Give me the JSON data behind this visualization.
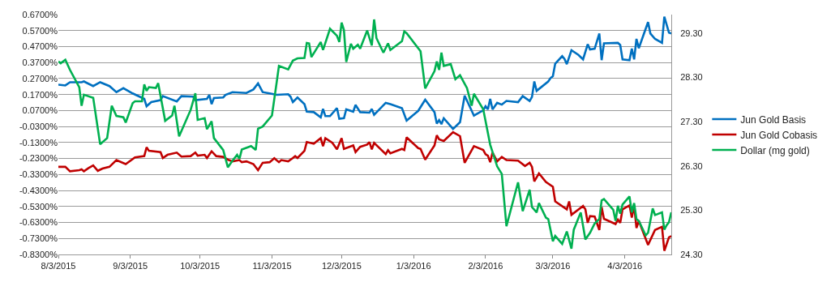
{
  "chart_data": {
    "type": "line",
    "legend": "right",
    "grid": "y",
    "marker": "none",
    "line_style": "solid",
    "xlim": [
      "2015-08-03",
      "2016-04-23"
    ],
    "xticks": [
      {
        "value": "2015-08-03",
        "label": "8/3/2015"
      },
      {
        "value": "2015-09-03",
        "label": "9/3/2015"
      },
      {
        "value": "2015-10-03",
        "label": "10/3/2015"
      },
      {
        "value": "2015-11-03",
        "label": "11/3/2015"
      },
      {
        "value": "2015-12-03",
        "label": "12/3/2015"
      },
      {
        "value": "2016-01-03",
        "label": "1/3/2016"
      },
      {
        "value": "2016-02-03",
        "label": "2/3/2016"
      },
      {
        "value": "2016-03-03",
        "label": "3/3/2016"
      },
      {
        "value": "2016-04-03",
        "label": "4/3/2016"
      }
    ],
    "ylim": [
      -0.83,
      0.67
    ],
    "yticks": [
      {
        "value": 0.67,
        "label": "0.6700%"
      },
      {
        "value": 0.57,
        "label": "0.5700%"
      },
      {
        "value": 0.47,
        "label": "0.4700%"
      },
      {
        "value": 0.37,
        "label": "0.3700%"
      },
      {
        "value": 0.27,
        "label": "0.2700%"
      },
      {
        "value": 0.17,
        "label": "0.1700%"
      },
      {
        "value": 0.07,
        "label": "0.0700%"
      },
      {
        "value": -0.03,
        "label": "-0.0300%"
      },
      {
        "value": -0.13,
        "label": "-0.1300%"
      },
      {
        "value": -0.23,
        "label": "-0.2300%"
      },
      {
        "value": -0.33,
        "label": "-0.3300%"
      },
      {
        "value": -0.43,
        "label": "-0.4300%"
      },
      {
        "value": -0.53,
        "label": "-0.5300%"
      },
      {
        "value": -0.63,
        "label": "-0.6300%"
      },
      {
        "value": -0.73,
        "label": "-0.7300%"
      },
      {
        "value": -0.83,
        "label": "-0.8300%"
      }
    ],
    "y2lim": [
      24.3,
      29.72
    ],
    "y2ticks": [
      {
        "value": 24.3,
        "label": "24.30"
      },
      {
        "value": 25.3,
        "label": "25.30"
      },
      {
        "value": 26.3,
        "label": "26.30"
      },
      {
        "value": 27.3,
        "label": "27.30"
      },
      {
        "value": 28.3,
        "label": "28.30"
      },
      {
        "value": 29.3,
        "label": "29.30"
      }
    ],
    "series": [
      {
        "name": "Jun Gold Basis",
        "color": "#0070c0",
        "x": [
          "2015-08-03",
          "2015-08-06",
          "2015-08-08",
          "2015-08-13",
          "2015-08-14",
          "2015-08-18",
          "2015-08-21",
          "2015-08-25",
          "2015-08-28",
          "2015-08-31",
          "2015-09-04",
          "2015-09-09",
          "2015-09-10",
          "2015-09-12",
          "2015-09-16",
          "2015-09-17",
          "2015-09-23",
          "2015-09-25",
          "2015-09-30",
          "2015-10-01",
          "2015-10-06",
          "2015-10-07",
          "2015-10-08",
          "2015-10-09",
          "2015-10-13",
          "2015-10-14",
          "2015-10-17",
          "2015-10-23",
          "2015-10-26",
          "2015-10-28",
          "2015-10-30",
          "2015-11-02",
          "2015-11-05",
          "2015-11-10",
          "2015-11-11",
          "2015-11-12",
          "2015-11-14",
          "2015-11-17",
          "2015-11-18",
          "2015-11-21",
          "2015-11-24",
          "2015-11-25",
          "2015-11-26",
          "2015-11-28",
          "2015-12-01",
          "2015-12-02",
          "2015-12-04",
          "2015-12-05",
          "2015-12-08",
          "2015-12-09",
          "2015-12-11",
          "2015-12-15",
          "2015-12-16",
          "2015-12-17",
          "2015-12-22",
          "2015-12-24",
          "2015-12-29",
          "2015-12-31",
          "2016-01-05",
          "2016-01-08",
          "2016-01-12",
          "2016-01-13",
          "2016-01-14",
          "2016-01-15",
          "2016-01-16",
          "2016-01-20",
          "2016-01-23",
          "2016-01-25",
          "2016-01-29",
          "2016-02-02",
          "2016-02-03",
          "2016-02-04",
          "2016-02-05",
          "2016-02-06",
          "2016-02-08",
          "2016-02-10",
          "2016-02-12",
          "2016-02-17",
          "2016-02-19",
          "2016-02-22",
          "2016-02-23",
          "2016-02-24",
          "2016-02-25",
          "2016-03-01",
          "2016-03-02",
          "2016-03-03",
          "2016-03-04",
          "2016-03-07",
          "2016-03-08",
          "2016-03-09",
          "2016-03-11",
          "2016-03-14",
          "2016-03-16",
          "2016-03-18",
          "2016-03-19",
          "2016-03-21",
          "2016-03-23",
          "2016-03-24",
          "2016-03-25",
          "2016-03-31",
          "2016-04-01",
          "2016-04-02",
          "2016-04-05",
          "2016-04-06",
          "2016-04-07",
          "2016-04-08",
          "2016-04-09",
          "2016-04-13",
          "2016-04-14",
          "2016-04-16",
          "2016-04-19",
          "2016-04-20",
          "2016-04-22",
          "2016-04-23"
        ],
        "values": [
          0.232,
          0.227,
          0.247,
          0.247,
          0.252,
          0.223,
          0.247,
          0.223,
          0.185,
          0.21,
          0.177,
          0.143,
          0.097,
          0.123,
          0.135,
          0.16,
          0.127,
          0.16,
          0.157,
          0.135,
          0.143,
          0.168,
          0.11,
          0.148,
          0.152,
          0.168,
          0.185,
          0.18,
          0.202,
          0.24,
          0.185,
          0.177,
          0.168,
          0.172,
          0.157,
          0.123,
          0.152,
          0.11,
          0.063,
          0.06,
          0.027,
          0.08,
          0.035,
          0.035,
          0.085,
          0.018,
          0.022,
          0.077,
          0.063,
          0.105,
          0.06,
          0.057,
          0.08,
          0.043,
          0.118,
          0.11,
          0.085,
          0.007,
          0.068,
          0.138,
          0.06,
          -0.012,
          0.01,
          -0.015,
          0.022,
          -0.045,
          -0.003,
          0.163,
          0.038,
          0.072,
          0.097,
          0.077,
          0.143,
          0.077,
          0.118,
          0.107,
          0.13,
          0.122,
          0.16,
          0.13,
          0.155,
          0.252,
          0.193,
          0.252,
          0.273,
          0.285,
          0.363,
          0.41,
          0.393,
          0.36,
          0.447,
          0.418,
          0.39,
          0.485,
          0.452,
          0.457,
          0.552,
          0.385,
          0.49,
          0.493,
          0.48,
          0.39,
          0.385,
          0.457,
          0.39,
          0.518,
          0.46,
          0.623,
          0.552,
          0.518,
          0.493,
          0.657,
          0.557,
          0.552
        ]
      },
      {
        "name": "Jun Gold Cobasis",
        "color": "#c00000",
        "x": [
          "2015-08-03",
          "2015-08-06",
          "2015-08-08",
          "2015-08-12",
          "2015-08-13",
          "2015-08-14",
          "2015-08-16",
          "2015-08-18",
          "2015-08-20",
          "2015-08-22",
          "2015-08-25",
          "2015-08-28",
          "2015-09-01",
          "2015-09-05",
          "2015-09-09",
          "2015-09-10",
          "2015-09-11",
          "2015-09-16",
          "2015-09-17",
          "2015-09-19",
          "2015-09-23",
          "2015-09-25",
          "2015-09-29",
          "2015-10-01",
          "2015-10-02",
          "2015-10-05",
          "2015-10-06",
          "2015-10-08",
          "2015-10-10",
          "2015-10-13",
          "2015-10-15",
          "2015-10-17",
          "2015-10-20",
          "2015-10-21",
          "2015-10-23",
          "2015-10-26",
          "2015-10-28",
          "2015-10-30",
          "2015-11-02",
          "2015-11-04",
          "2015-11-06",
          "2015-11-07",
          "2015-11-10",
          "2015-11-12",
          "2015-11-13",
          "2015-11-14",
          "2015-11-17",
          "2015-11-18",
          "2015-11-21",
          "2015-11-24",
          "2015-11-25",
          "2015-11-26",
          "2015-11-29",
          "2015-12-01",
          "2015-12-03",
          "2015-12-04",
          "2015-12-08",
          "2015-12-09",
          "2015-12-11",
          "2015-12-14",
          "2015-12-15",
          "2015-12-16",
          "2015-12-17",
          "2015-12-22",
          "2015-12-23",
          "2015-12-24",
          "2015-12-29",
          "2015-12-30",
          "2015-12-31",
          "2016-01-05",
          "2016-01-06",
          "2016-01-08",
          "2016-01-12",
          "2016-01-13",
          "2016-01-14",
          "2016-01-16",
          "2016-01-20",
          "2016-01-23",
          "2016-01-25",
          "2016-01-29",
          "2016-02-02",
          "2016-02-03",
          "2016-02-04",
          "2016-02-05",
          "2016-02-06",
          "2016-02-08",
          "2016-02-10",
          "2016-02-12",
          "2016-02-17",
          "2016-02-20",
          "2016-02-22",
          "2016-02-23",
          "2016-02-24",
          "2016-02-26",
          "2016-02-29",
          "2016-03-03",
          "2016-03-04",
          "2016-03-09",
          "2016-03-10",
          "2016-03-11",
          "2016-03-16",
          "2016-03-17",
          "2016-03-18",
          "2016-03-19",
          "2016-03-21",
          "2016-03-23",
          "2016-03-24",
          "2016-03-25",
          "2016-03-30",
          "2016-03-31",
          "2016-04-01",
          "2016-04-02",
          "2016-04-05",
          "2016-04-06",
          "2016-04-07",
          "2016-04-08",
          "2016-04-09",
          "2016-04-13",
          "2016-04-16",
          "2016-04-19",
          "2016-04-20",
          "2016-04-22",
          "2016-04-23"
        ],
        "values": [
          -0.282,
          -0.282,
          -0.31,
          -0.303,
          -0.298,
          -0.31,
          -0.29,
          -0.273,
          -0.307,
          -0.293,
          -0.282,
          -0.24,
          -0.265,
          -0.223,
          -0.215,
          -0.16,
          -0.182,
          -0.19,
          -0.227,
          -0.207,
          -0.193,
          -0.218,
          -0.215,
          -0.193,
          -0.212,
          -0.207,
          -0.227,
          -0.185,
          -0.215,
          -0.22,
          -0.237,
          -0.248,
          -0.24,
          -0.253,
          -0.248,
          -0.265,
          -0.303,
          -0.257,
          -0.253,
          -0.228,
          -0.253,
          -0.24,
          -0.248,
          -0.227,
          -0.215,
          -0.227,
          -0.182,
          -0.127,
          -0.137,
          -0.103,
          -0.153,
          -0.103,
          -0.132,
          -0.173,
          -0.103,
          -0.17,
          -0.148,
          -0.19,
          -0.157,
          -0.143,
          -0.127,
          -0.173,
          -0.132,
          -0.203,
          -0.178,
          -0.198,
          -0.17,
          -0.177,
          -0.098,
          -0.165,
          -0.17,
          -0.237,
          -0.148,
          -0.085,
          -0.11,
          -0.12,
          -0.065,
          -0.09,
          -0.257,
          -0.153,
          -0.177,
          -0.203,
          -0.212,
          -0.253,
          -0.193,
          -0.248,
          -0.22,
          -0.24,
          -0.243,
          -0.277,
          -0.257,
          -0.282,
          -0.373,
          -0.323,
          -0.377,
          -0.407,
          -0.498,
          -0.548,
          -0.498,
          -0.582,
          -0.527,
          -0.548,
          -0.632,
          -0.59,
          -0.593,
          -0.677,
          -0.533,
          -0.607,
          -0.64,
          -0.612,
          -0.633,
          -0.548,
          -0.523,
          -0.6,
          -0.523,
          -0.665,
          -0.62,
          -0.77,
          -0.677,
          -0.657,
          -0.807,
          -0.723,
          -0.715
        ]
      },
      {
        "name": "Dollar (mg gold)",
        "color": "#00b050",
        "axis": "y2",
        "x": [
          "2015-08-03",
          "2015-08-04",
          "2015-08-06",
          "2015-08-08",
          "2015-08-12",
          "2015-08-13",
          "2015-08-14",
          "2015-08-18",
          "2015-08-21",
          "2015-08-24",
          "2015-08-26",
          "2015-08-28",
          "2015-08-31",
          "2015-09-01",
          "2015-09-04",
          "2015-09-05",
          "2015-09-08",
          "2015-09-09",
          "2015-09-10",
          "2015-09-11",
          "2015-09-14",
          "2015-09-15",
          "2015-09-18",
          "2015-09-21",
          "2015-09-22",
          "2015-09-24",
          "2015-09-29",
          "2015-10-01",
          "2015-10-02",
          "2015-10-05",
          "2015-10-06",
          "2015-10-08",
          "2015-10-09",
          "2015-10-13",
          "2015-10-15",
          "2015-10-17",
          "2015-10-19",
          "2015-10-20",
          "2015-10-21",
          "2015-10-25",
          "2015-10-27",
          "2015-10-28",
          "2015-10-30",
          "2015-11-03",
          "2015-11-05",
          "2015-11-06",
          "2015-11-10",
          "2015-11-12",
          "2015-11-14",
          "2015-11-17",
          "2015-11-18",
          "2015-11-19",
          "2015-11-20",
          "2015-11-24",
          "2015-11-25",
          "2015-11-28",
          "2015-12-01",
          "2015-12-02",
          "2015-12-03",
          "2015-12-04",
          "2015-12-05",
          "2015-12-07",
          "2015-12-08",
          "2015-12-10",
          "2015-12-11",
          "2015-12-14",
          "2015-12-16",
          "2015-12-17",
          "2015-12-18",
          "2015-12-21",
          "2015-12-23",
          "2015-12-24",
          "2015-12-29",
          "2015-12-30",
          "2015-12-31",
          "2016-01-06",
          "2016-01-08",
          "2016-01-12",
          "2016-01-13",
          "2016-01-14",
          "2016-01-15",
          "2016-01-16",
          "2016-01-19",
          "2016-01-21",
          "2016-01-23",
          "2016-01-26",
          "2016-01-28",
          "2016-01-29",
          "2016-02-02",
          "2016-02-05",
          "2016-02-08",
          "2016-02-10",
          "2016-02-12",
          "2016-02-17",
          "2016-02-19",
          "2016-02-22",
          "2016-02-23",
          "2016-02-25",
          "2016-02-26",
          "2016-02-29",
          "2016-03-01",
          "2016-03-03",
          "2016-03-04",
          "2016-03-07",
          "2016-03-09",
          "2016-03-11",
          "2016-03-12",
          "2016-03-15",
          "2016-03-17",
          "2016-03-19",
          "2016-03-21",
          "2016-03-23",
          "2016-03-24",
          "2016-03-25",
          "2016-03-29",
          "2016-03-30",
          "2016-03-31",
          "2016-04-01",
          "2016-04-02",
          "2016-04-05",
          "2016-04-06",
          "2016-04-07",
          "2016-04-08",
          "2016-04-09",
          "2016-04-12",
          "2016-04-13",
          "2016-04-15",
          "2016-04-16",
          "2016-04-19",
          "2016-04-20",
          "2016-04-21",
          "2016-04-22",
          "2016-04-23"
        ],
        "values": [
          28.66,
          28.62,
          28.7,
          28.47,
          28.08,
          27.66,
          27.91,
          27.84,
          26.79,
          26.93,
          27.66,
          27.43,
          27.4,
          27.28,
          27.72,
          27.76,
          27.76,
          28.14,
          28.0,
          28.08,
          28.06,
          28.17,
          27.32,
          27.44,
          27.66,
          26.97,
          27.57,
          27.94,
          27.34,
          27.38,
          27.13,
          27.31,
          26.93,
          26.66,
          26.27,
          26.42,
          26.55,
          26.46,
          26.67,
          26.75,
          26.66,
          27.14,
          27.19,
          27.44,
          28.18,
          28.56,
          28.48,
          28.68,
          28.73,
          28.74,
          29.08,
          29.07,
          28.76,
          29.1,
          28.92,
          29.4,
          29.24,
          29.1,
          29.54,
          29.37,
          28.65,
          29.06,
          28.95,
          29.04,
          28.95,
          29.36,
          29.02,
          29.61,
          29.19,
          28.86,
          29.07,
          28.92,
          29.12,
          29.34,
          29.3,
          28.89,
          28.05,
          28.44,
          28.66,
          28.47,
          28.86,
          28.56,
          28.6,
          28.26,
          28.35,
          28.06,
          27.66,
          27.93,
          27.58,
          26.78,
          26.29,
          26.12,
          24.94,
          25.93,
          25.28,
          25.76,
          25.37,
          25.25,
          25.46,
          25.13,
          25.1,
          24.6,
          24.72,
          24.54,
          24.82,
          24.43,
          24.86,
          25.25,
          24.64,
          24.79,
          25.0,
          25.1,
          25.52,
          25.55,
          25.31,
          25.06,
          25.4,
          25.22,
          25.43,
          25.61,
          25.25,
          25.46,
          25.1,
          25.06,
          24.73,
          24.79,
          25.34,
          25.19,
          25.25,
          24.86,
          24.96,
          25.03,
          25.25
        ]
      }
    ]
  }
}
